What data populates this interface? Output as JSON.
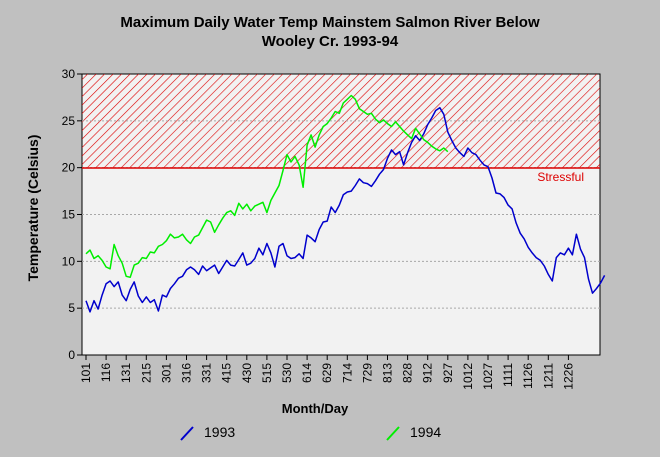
{
  "chart_data": {
    "type": "line",
    "title_line1": "Maximum Daily Water Temp Mainstem Salmon River Below",
    "title_line2": "Wooley Cr. 1993-94",
    "xlabel": "Month/Day",
    "ylabel": "Temperature (Celsius)",
    "ylim": [
      0,
      30
    ],
    "yticks": [
      0,
      5,
      10,
      15,
      20,
      25,
      30
    ],
    "xtick_labels": [
      "101",
      "116",
      "131",
      "215",
      "301",
      "316",
      "331",
      "415",
      "430",
      "515",
      "530",
      "614",
      "629",
      "714",
      "729",
      "813",
      "828",
      "912",
      "927",
      "1012",
      "1027",
      "1111",
      "1126",
      "1211",
      "1226"
    ],
    "grid": true,
    "stressful_threshold": 20,
    "stressful_label": "Stressful",
    "legend_position": "bottom",
    "series": [
      {
        "name": "1993",
        "color": "#0000cc",
        "points": [
          [
            0,
            5.8
          ],
          [
            3,
            4.6
          ],
          [
            6,
            5.8
          ],
          [
            9,
            4.9
          ],
          [
            12,
            6.4
          ],
          [
            15,
            7.6
          ],
          [
            18,
            7.9
          ],
          [
            21,
            7.3
          ],
          [
            24,
            7.8
          ],
          [
            27,
            6.4
          ],
          [
            30,
            5.8
          ],
          [
            33,
            7.0
          ],
          [
            36,
            7.8
          ],
          [
            39,
            6.3
          ],
          [
            42,
            5.6
          ],
          [
            45,
            6.2
          ],
          [
            48,
            5.6
          ],
          [
            51,
            5.9
          ],
          [
            54,
            4.7
          ],
          [
            57,
            6.4
          ],
          [
            60,
            6.2
          ],
          [
            63,
            7.1
          ],
          [
            66,
            7.6
          ],
          [
            69,
            8.2
          ],
          [
            72,
            8.4
          ],
          [
            75,
            9.1
          ],
          [
            78,
            9.4
          ],
          [
            81,
            9.1
          ],
          [
            84,
            8.6
          ],
          [
            87,
            9.5
          ],
          [
            90,
            9.0
          ],
          [
            93,
            9.3
          ],
          [
            96,
            9.6
          ],
          [
            99,
            8.7
          ],
          [
            102,
            9.4
          ],
          [
            105,
            10.1
          ],
          [
            108,
            9.6
          ],
          [
            111,
            9.5
          ],
          [
            114,
            10.2
          ],
          [
            117,
            10.9
          ],
          [
            120,
            9.6
          ],
          [
            123,
            9.8
          ],
          [
            126,
            10.3
          ],
          [
            129,
            11.4
          ],
          [
            132,
            10.7
          ],
          [
            135,
            11.9
          ],
          [
            138,
            10.9
          ],
          [
            141,
            9.4
          ],
          [
            144,
            11.6
          ],
          [
            147,
            11.9
          ],
          [
            150,
            10.6
          ],
          [
            153,
            10.3
          ],
          [
            156,
            10.4
          ],
          [
            159,
            10.8
          ],
          [
            162,
            10.3
          ],
          [
            165,
            12.8
          ],
          [
            168,
            12.5
          ],
          [
            171,
            12.1
          ],
          [
            174,
            13.4
          ],
          [
            177,
            14.2
          ],
          [
            180,
            14.3
          ],
          [
            183,
            15.8
          ],
          [
            186,
            15.2
          ],
          [
            189,
            16.0
          ],
          [
            192,
            17.1
          ],
          [
            195,
            17.4
          ],
          [
            198,
            17.5
          ],
          [
            201,
            18.1
          ],
          [
            204,
            18.8
          ],
          [
            207,
            18.4
          ],
          [
            210,
            18.3
          ],
          [
            213,
            18.0
          ],
          [
            216,
            18.6
          ],
          [
            219,
            19.3
          ],
          [
            222,
            19.8
          ],
          [
            225,
            21.0
          ],
          [
            228,
            21.9
          ],
          [
            231,
            21.4
          ],
          [
            234,
            21.7
          ],
          [
            237,
            20.3
          ],
          [
            240,
            21.6
          ],
          [
            243,
            22.7
          ],
          [
            246,
            23.4
          ],
          [
            249,
            22.9
          ],
          [
            252,
            23.6
          ],
          [
            255,
            24.6
          ],
          [
            258,
            25.3
          ],
          [
            261,
            26.1
          ],
          [
            264,
            26.4
          ],
          [
            267,
            25.7
          ],
          [
            270,
            23.8
          ],
          [
            273,
            22.9
          ],
          [
            276,
            22.1
          ],
          [
            279,
            21.6
          ],
          [
            282,
            21.2
          ],
          [
            285,
            22.1
          ],
          [
            288,
            21.6
          ],
          [
            291,
            21.4
          ],
          [
            294,
            20.8
          ],
          [
            297,
            20.3
          ],
          [
            300,
            20.1
          ],
          [
            303,
            18.9
          ],
          [
            306,
            17.3
          ],
          [
            309,
            17.2
          ],
          [
            312,
            16.8
          ],
          [
            315,
            16.0
          ],
          [
            318,
            15.6
          ],
          [
            321,
            14.1
          ],
          [
            324,
            13.0
          ],
          [
            327,
            12.4
          ],
          [
            330,
            11.5
          ],
          [
            333,
            10.9
          ],
          [
            336,
            10.4
          ],
          [
            339,
            10.1
          ],
          [
            342,
            9.5
          ],
          [
            345,
            8.6
          ],
          [
            348,
            7.9
          ],
          [
            351,
            10.4
          ],
          [
            354,
            10.9
          ],
          [
            357,
            10.7
          ],
          [
            360,
            11.4
          ],
          [
            363,
            10.7
          ],
          [
            366,
            12.9
          ],
          [
            369,
            11.3
          ],
          [
            372,
            10.4
          ],
          [
            375,
            8.1
          ],
          [
            378,
            6.6
          ],
          [
            381,
            7.1
          ],
          [
            384,
            7.7
          ],
          [
            387,
            8.5
          ]
        ]
      },
      {
        "name": "1994",
        "color": "#00ee00",
        "points": [
          [
            0,
            10.8
          ],
          [
            3,
            11.2
          ],
          [
            6,
            10.3
          ],
          [
            9,
            10.6
          ],
          [
            12,
            10.1
          ],
          [
            15,
            9.4
          ],
          [
            18,
            9.2
          ],
          [
            21,
            11.8
          ],
          [
            24,
            10.6
          ],
          [
            27,
            9.8
          ],
          [
            30,
            8.4
          ],
          [
            33,
            8.3
          ],
          [
            36,
            9.6
          ],
          [
            39,
            9.8
          ],
          [
            42,
            10.4
          ],
          [
            45,
            10.3
          ],
          [
            48,
            11.0
          ],
          [
            51,
            10.9
          ],
          [
            54,
            11.6
          ],
          [
            57,
            11.8
          ],
          [
            60,
            12.2
          ],
          [
            63,
            12.9
          ],
          [
            66,
            12.5
          ],
          [
            69,
            12.6
          ],
          [
            72,
            12.9
          ],
          [
            75,
            12.3
          ],
          [
            78,
            11.9
          ],
          [
            81,
            12.6
          ],
          [
            84,
            12.8
          ],
          [
            87,
            13.6
          ],
          [
            90,
            14.4
          ],
          [
            93,
            14.2
          ],
          [
            96,
            13.1
          ],
          [
            99,
            13.9
          ],
          [
            102,
            14.6
          ],
          [
            105,
            15.2
          ],
          [
            108,
            15.4
          ],
          [
            111,
            14.9
          ],
          [
            114,
            16.2
          ],
          [
            117,
            15.6
          ],
          [
            120,
            16.1
          ],
          [
            123,
            15.4
          ],
          [
            126,
            15.9
          ],
          [
            129,
            16.1
          ],
          [
            132,
            16.3
          ],
          [
            135,
            15.2
          ],
          [
            138,
            16.5
          ],
          [
            141,
            17.3
          ],
          [
            144,
            18.1
          ],
          [
            147,
            19.7
          ],
          [
            150,
            21.4
          ],
          [
            153,
            20.6
          ],
          [
            156,
            21.2
          ],
          [
            159,
            20.3
          ],
          [
            162,
            17.9
          ],
          [
            165,
            22.4
          ],
          [
            168,
            23.5
          ],
          [
            171,
            22.2
          ],
          [
            174,
            23.5
          ],
          [
            177,
            24.4
          ],
          [
            180,
            24.7
          ],
          [
            183,
            25.3
          ],
          [
            186,
            26.0
          ],
          [
            189,
            25.8
          ],
          [
            192,
            26.9
          ],
          [
            195,
            27.3
          ],
          [
            198,
            27.7
          ],
          [
            201,
            27.3
          ],
          [
            204,
            26.3
          ],
          [
            207,
            26.0
          ],
          [
            210,
            25.7
          ],
          [
            213,
            25.8
          ],
          [
            216,
            25.2
          ],
          [
            219,
            24.8
          ],
          [
            222,
            25.1
          ],
          [
            225,
            24.7
          ],
          [
            228,
            24.4
          ],
          [
            231,
            24.9
          ],
          [
            234,
            24.4
          ],
          [
            237,
            23.9
          ],
          [
            240,
            23.5
          ],
          [
            243,
            23.1
          ],
          [
            246,
            24.2
          ],
          [
            249,
            23.6
          ],
          [
            252,
            23.0
          ],
          [
            255,
            22.7
          ],
          [
            258,
            22.3
          ],
          [
            261,
            22.0
          ],
          [
            264,
            21.8
          ],
          [
            267,
            22.1
          ],
          [
            270,
            21.7
          ]
        ]
      }
    ]
  }
}
